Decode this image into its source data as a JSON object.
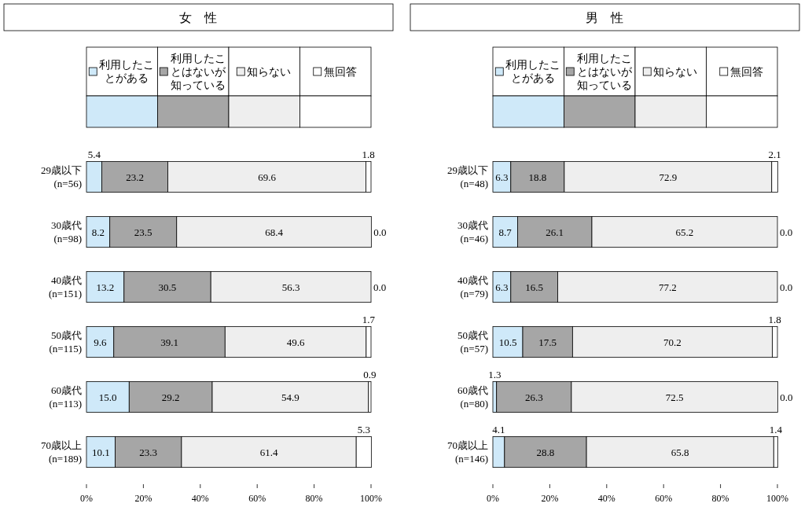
{
  "chart_data": [
    {
      "type": "bar",
      "title": "女　性",
      "orientation": "horizontal",
      "stacked": true,
      "legend": "top",
      "categories": [
        "29歳以下\n(n=56)",
        "30歳代\n(n=98)",
        "40歳代\n(n=151)",
        "50歳代\n(n=115)",
        "60歳代\n(n=113)",
        "70歳以上\n(n=189)"
      ],
      "xlim": [
        0,
        100
      ],
      "xticks": [
        {
          "value": 0,
          "label": "0%"
        },
        {
          "value": 20,
          "label": "20%"
        },
        {
          "value": 40,
          "label": "40%"
        },
        {
          "value": 60,
          "label": "60%"
        },
        {
          "value": 80,
          "label": "80%"
        },
        {
          "value": 100,
          "label": "100%"
        }
      ],
      "series": [
        {
          "name": "利用したことがある",
          "color": "#cfe9f9",
          "values": [
            5.4,
            8.2,
            13.2,
            9.6,
            15.0,
            10.1
          ],
          "value_labels": [
            "5.4",
            "8.2",
            "13.2",
            "9.6",
            "15.0",
            "10.1"
          ]
        },
        {
          "name": "利用したことはないが知っている",
          "color": "#a6a6a6",
          "values": [
            23.2,
            23.5,
            30.5,
            39.1,
            29.2,
            23.3
          ],
          "value_labels": [
            "23.2",
            "23.5",
            "30.5",
            "39.1",
            "29.2",
            "23.3"
          ]
        },
        {
          "name": "知らない",
          "color": "#eeeeee",
          "values": [
            69.6,
            68.4,
            56.3,
            49.6,
            54.9,
            61.4
          ],
          "value_labels": [
            "69.6",
            "68.4",
            "56.3",
            "49.6",
            "54.9",
            "61.4"
          ]
        },
        {
          "name": "無回答",
          "color": "#ffffff",
          "values": [
            1.8,
            0.0,
            0.0,
            1.7,
            0.9,
            5.3
          ],
          "value_labels": [
            "1.8",
            "0.0",
            "0.0",
            "1.7",
            "0.9",
            "5.3"
          ]
        }
      ]
    },
    {
      "type": "bar",
      "title": "男　性",
      "orientation": "horizontal",
      "stacked": true,
      "legend": "top",
      "categories": [
        "29歳以下\n(n=48)",
        "30歳代\n(n=46)",
        "40歳代\n(n=79)",
        "50歳代\n(n=57)",
        "60歳代\n(n=80)",
        "70歳以上\n(n=146)"
      ],
      "xlim": [
        0,
        100
      ],
      "xticks": [
        {
          "value": 0,
          "label": "0%"
        },
        {
          "value": 20,
          "label": "20%"
        },
        {
          "value": 40,
          "label": "40%"
        },
        {
          "value": 60,
          "label": "60%"
        },
        {
          "value": 80,
          "label": "80%"
        },
        {
          "value": 100,
          "label": "100%"
        }
      ],
      "series": [
        {
          "name": "利用したことがある",
          "color": "#cfe9f9",
          "values": [
            6.3,
            8.7,
            6.3,
            10.5,
            1.3,
            4.1
          ],
          "value_labels": [
            "6.3",
            "8.7",
            "6.3",
            "10.5",
            "1.3",
            "4.1"
          ]
        },
        {
          "name": "利用したことはないが知っている",
          "color": "#a6a6a6",
          "values": [
            18.8,
            26.1,
            16.5,
            17.5,
            26.3,
            28.8
          ],
          "value_labels": [
            "18.8",
            "26.1",
            "16.5",
            "17.5",
            "26.3",
            "28.8"
          ]
        },
        {
          "name": "知らない",
          "color": "#eeeeee",
          "values": [
            72.9,
            65.2,
            77.2,
            70.2,
            72.5,
            65.8
          ],
          "value_labels": [
            "72.9",
            "65.2",
            "77.2",
            "70.2",
            "72.5",
            "65.8"
          ]
        },
        {
          "name": "無回答",
          "color": "#ffffff",
          "values": [
            2.1,
            0.0,
            0.0,
            1.8,
            0.0,
            1.4
          ],
          "value_labels": [
            "2.1",
            "0.0",
            "0.0",
            "1.8",
            "0.0",
            "1.4"
          ]
        }
      ]
    }
  ]
}
